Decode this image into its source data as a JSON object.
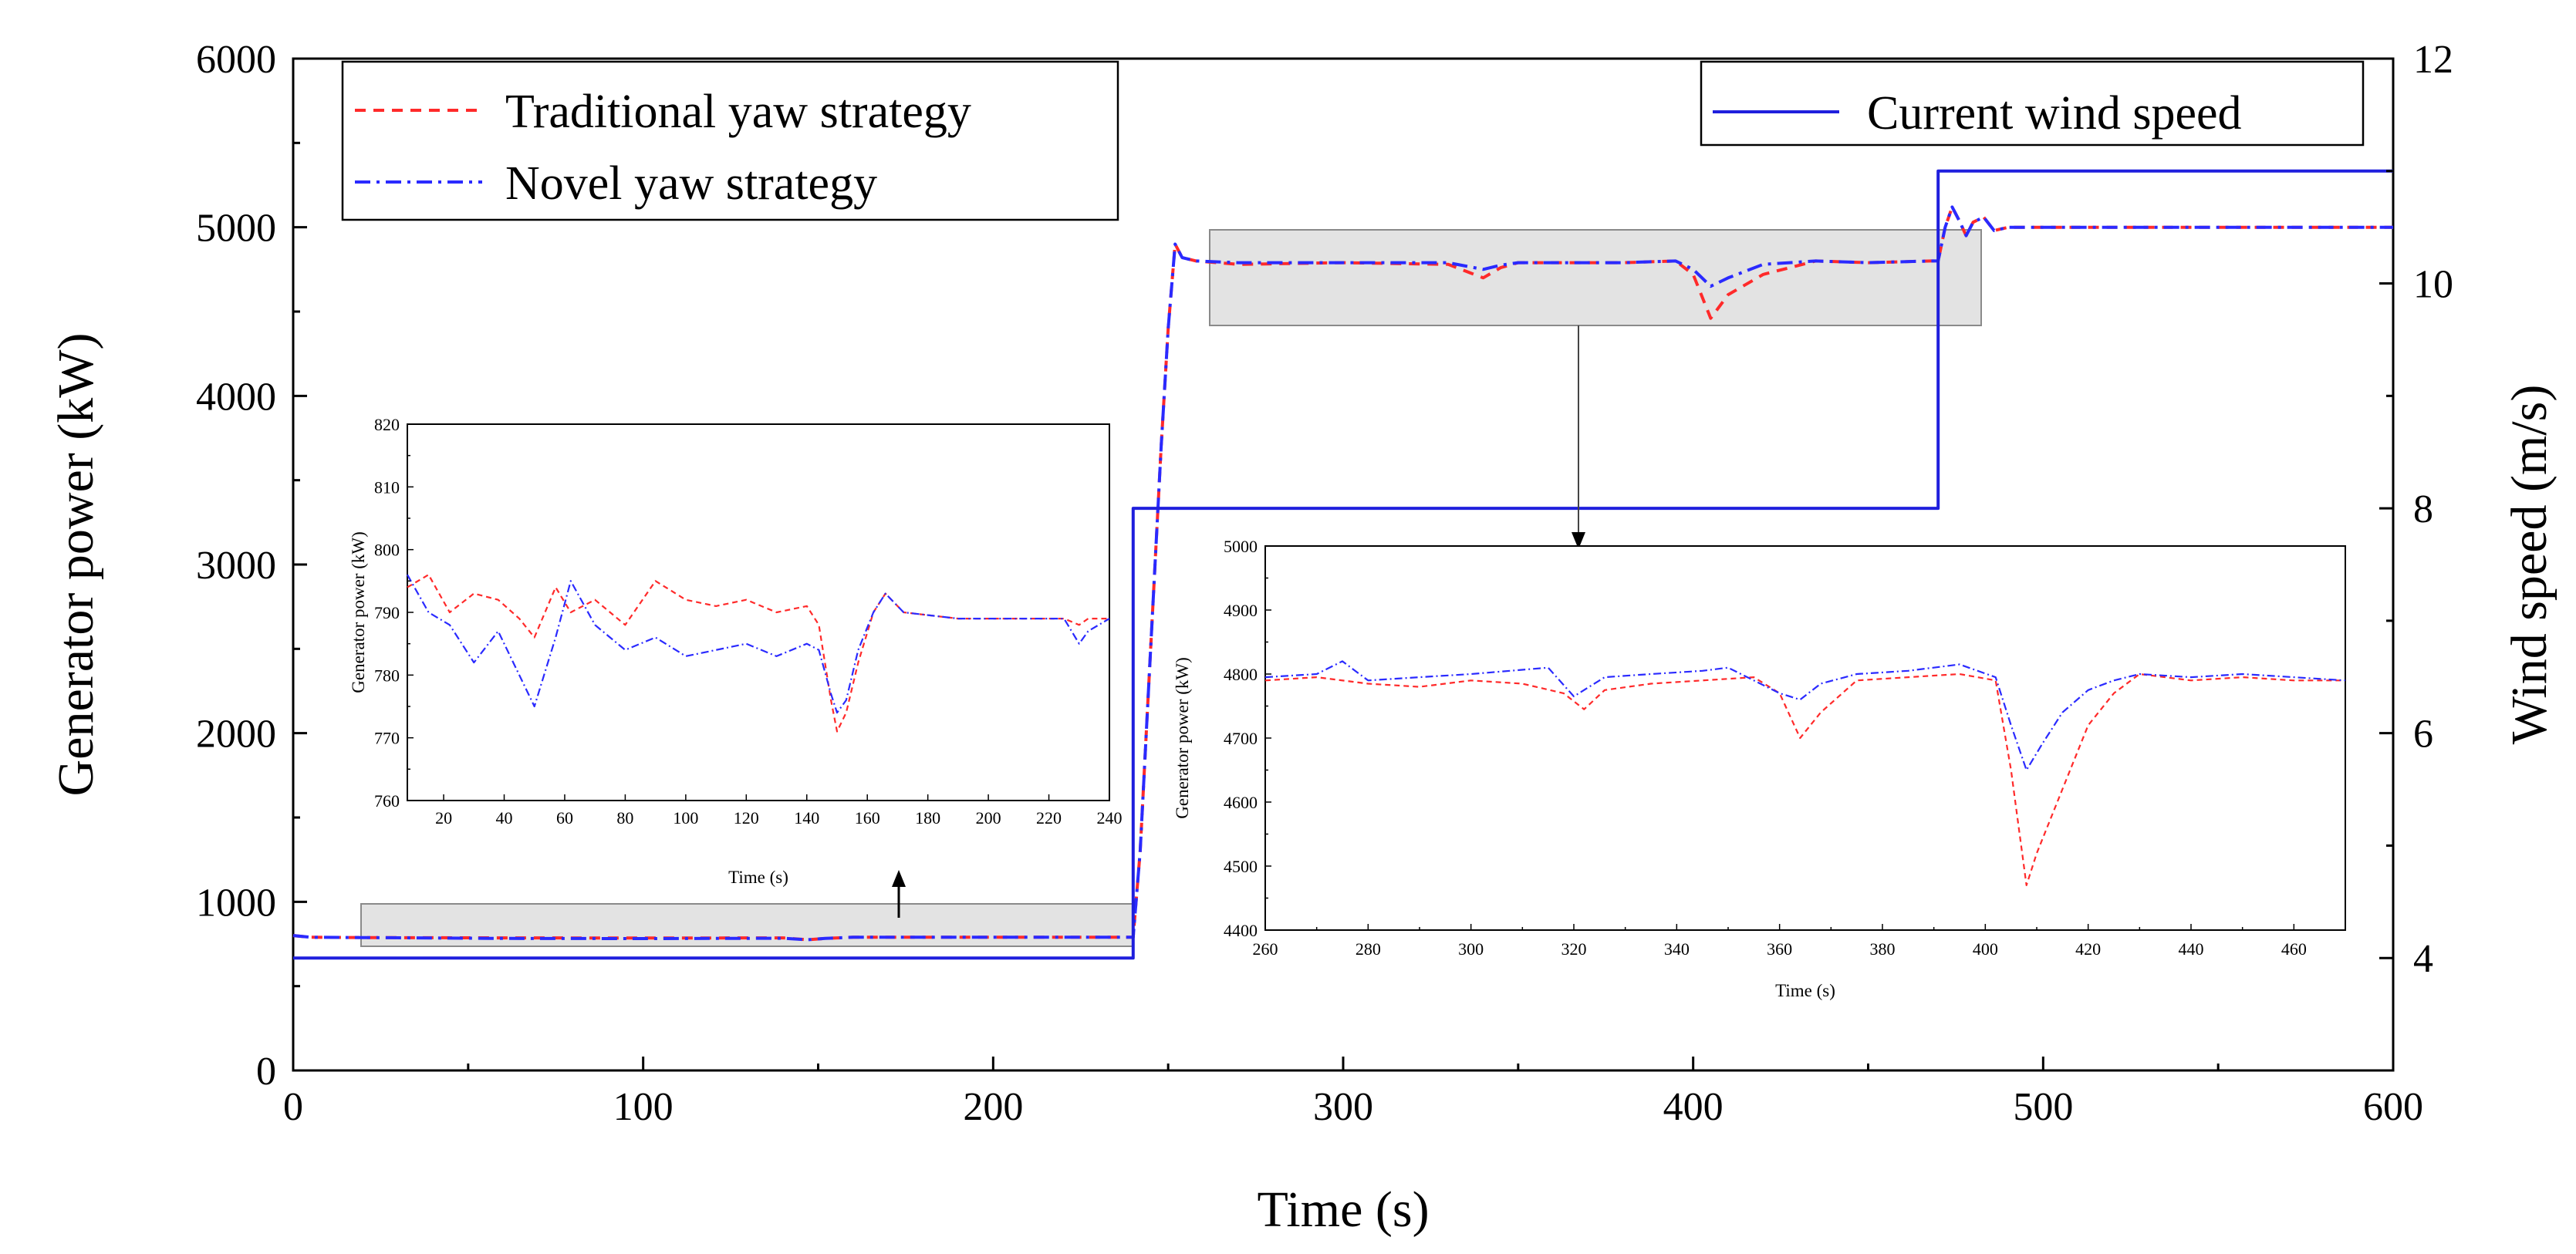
{
  "chart_data": [
    {
      "type": "line",
      "name": "main",
      "xlabel": "Time (s)",
      "ylabel": "Generator power (kW)",
      "y2label": "Wind speed (m/s)",
      "xlim": [
        0,
        600
      ],
      "ylim": [
        0,
        6000
      ],
      "y2lim": [
        3,
        12
      ],
      "xticks": [
        0,
        100,
        200,
        300,
        400,
        500,
        600
      ],
      "yticks": [
        0,
        1000,
        2000,
        3000,
        4000,
        5000,
        6000
      ],
      "y2ticks": [
        4,
        6,
        8,
        10,
        12
      ],
      "legend_left": [
        "Traditional yaw strategy",
        "Novel yaw strategy"
      ],
      "legend_right": [
        "Current wind speed"
      ],
      "series": [
        {
          "name": "Traditional yaw strategy",
          "color": "#ff2a2a",
          "style": "dashed",
          "axis": "left",
          "x": [
            0,
            5,
            20,
            60,
            100,
            140,
            147,
            152,
            160,
            200,
            240,
            242,
            244,
            246,
            248,
            250,
            252,
            254,
            258,
            270,
            300,
            330,
            340,
            345,
            350,
            380,
            395,
            400,
            405,
            410,
            420,
            435,
            450,
            468,
            470,
            472,
            474,
            476,
            478,
            480,
            483,
            486,
            490,
            500,
            540,
            600
          ],
          "y": [
            800,
            790,
            788,
            786,
            785,
            786,
            775,
            783,
            790,
            790,
            790,
            1300,
            2100,
            2900,
            3700,
            4400,
            4900,
            4820,
            4800,
            4780,
            4790,
            4780,
            4700,
            4760,
            4790,
            4790,
            4800,
            4720,
            4460,
            4600,
            4720,
            4800,
            4790,
            4800,
            4800,
            5000,
            5120,
            5040,
            4950,
            5030,
            5060,
            4980,
            5000,
            5000,
            5000,
            5000
          ]
        },
        {
          "name": "Novel yaw strategy",
          "color": "#2a2aff",
          "style": "dashdot",
          "axis": "left",
          "x": [
            0,
            5,
            20,
            60,
            100,
            140,
            147,
            152,
            160,
            200,
            240,
            242,
            244,
            246,
            248,
            250,
            252,
            254,
            258,
            270,
            300,
            330,
            340,
            345,
            350,
            380,
            395,
            400,
            405,
            410,
            420,
            435,
            450,
            468,
            470,
            472,
            474,
            476,
            478,
            480,
            483,
            486,
            490,
            500,
            540,
            600
          ],
          "y": [
            800,
            790,
            788,
            783,
            782,
            784,
            775,
            783,
            790,
            790,
            790,
            1300,
            2100,
            2900,
            3700,
            4400,
            4900,
            4820,
            4800,
            4790,
            4790,
            4790,
            4750,
            4775,
            4790,
            4790,
            4800,
            4750,
            4650,
            4700,
            4780,
            4800,
            4790,
            4800,
            4800,
            5000,
            5120,
            5040,
            4950,
            5030,
            5060,
            4980,
            5000,
            5000,
            5000,
            5000
          ]
        },
        {
          "name": "Current wind speed",
          "color": "#1f1fdd",
          "style": "solid",
          "axis": "right",
          "x": [
            0,
            240,
            240,
            470,
            470,
            600
          ],
          "y": [
            4,
            4,
            8,
            8,
            11,
            11
          ]
        }
      ]
    },
    {
      "type": "line",
      "name": "inset-low",
      "xlabel": "Time (s)",
      "ylabel": "Generator power (kW)",
      "xlim": [
        8,
        240
      ],
      "ylim": [
        760,
        820
      ],
      "xticks": [
        20,
        40,
        60,
        80,
        100,
        120,
        140,
        160,
        180,
        200,
        220,
        240
      ],
      "yticks": [
        760,
        770,
        780,
        790,
        800,
        810,
        820
      ],
      "series": [
        {
          "name": "Traditional yaw strategy",
          "color": "#ff2a2a",
          "style": "dashed",
          "x": [
            8,
            15,
            22,
            30,
            38,
            45,
            50,
            57,
            62,
            70,
            80,
            90,
            100,
            110,
            120,
            130,
            140,
            144,
            148,
            150,
            153,
            157,
            162,
            166,
            172,
            190,
            210,
            225,
            230,
            233,
            240
          ],
          "y": [
            794,
            796,
            790,
            793,
            792,
            789,
            786,
            794,
            790,
            792,
            788,
            795,
            792,
            791,
            792,
            790,
            791,
            788,
            776,
            771,
            774,
            782,
            790,
            793,
            790,
            789,
            789,
            789,
            788,
            789,
            789
          ]
        },
        {
          "name": "Novel yaw strategy",
          "color": "#2a2aff",
          "style": "dashdot",
          "x": [
            8,
            15,
            22,
            30,
            38,
            45,
            50,
            57,
            62,
            70,
            80,
            90,
            100,
            110,
            120,
            130,
            140,
            144,
            148,
            150,
            153,
            157,
            162,
            166,
            172,
            190,
            210,
            225,
            230,
            233,
            240
          ],
          "y": [
            796,
            790,
            788,
            782,
            787,
            780,
            775,
            786,
            795,
            788,
            784,
            786,
            783,
            784,
            785,
            783,
            785,
            784,
            777,
            774,
            776,
            784,
            790,
            793,
            790,
            789,
            789,
            789,
            785,
            787,
            789
          ]
        }
      ]
    },
    {
      "type": "line",
      "name": "inset-high",
      "xlabel": "Time (s)",
      "ylabel": "Generator power (kW)",
      "xlim": [
        260,
        470
      ],
      "ylim": [
        4400,
        5000
      ],
      "xticks": [
        260,
        280,
        300,
        320,
        340,
        360,
        380,
        400,
        420,
        440,
        460
      ],
      "yticks": [
        4400,
        4500,
        4600,
        4700,
        4800,
        4900,
        5000
      ],
      "series": [
        {
          "name": "Traditional yaw strategy",
          "color": "#ff2a2a",
          "style": "dashed",
          "x": [
            260,
            270,
            280,
            290,
            300,
            310,
            318,
            322,
            326,
            335,
            345,
            355,
            360,
            364,
            368,
            375,
            385,
            395,
            402,
            405,
            408,
            410,
            415,
            420,
            425,
            430,
            440,
            450,
            460,
            470
          ],
          "y": [
            4790,
            4795,
            4785,
            4780,
            4790,
            4785,
            4770,
            4745,
            4775,
            4785,
            4790,
            4795,
            4770,
            4700,
            4740,
            4790,
            4795,
            4800,
            4790,
            4650,
            4470,
            4520,
            4620,
            4720,
            4770,
            4800,
            4790,
            4795,
            4790,
            4790
          ]
        },
        {
          "name": "Novel yaw strategy",
          "color": "#2a2aff",
          "style": "dashdot",
          "x": [
            260,
            270,
            275,
            280,
            290,
            300,
            315,
            320,
            326,
            335,
            345,
            350,
            355,
            360,
            364,
            368,
            375,
            385,
            395,
            402,
            405,
            408,
            411,
            415,
            420,
            425,
            430,
            440,
            450,
            460,
            470
          ],
          "y": [
            4795,
            4800,
            4820,
            4790,
            4795,
            4800,
            4810,
            4765,
            4795,
            4800,
            4805,
            4810,
            4790,
            4770,
            4760,
            4785,
            4800,
            4805,
            4815,
            4795,
            4720,
            4650,
            4690,
            4740,
            4775,
            4790,
            4800,
            4795,
            4800,
            4795,
            4790
          ]
        }
      ]
    }
  ]
}
